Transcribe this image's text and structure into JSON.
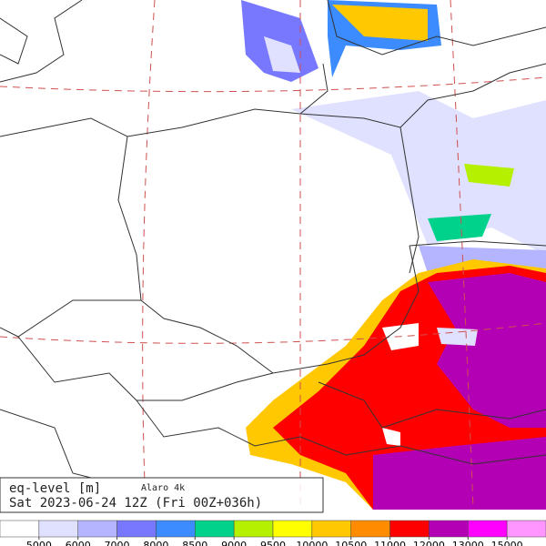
{
  "legend": {
    "title": "eq-level [m]",
    "model": "Alaro 4k",
    "time": "Sat 2023-06-24 12Z (Fri 00Z+036h)",
    "levels": [
      5000,
      6000,
      7000,
      8000,
      8500,
      9000,
      9500,
      10000,
      10500,
      11000,
      12000,
      13000,
      15000
    ],
    "colors": [
      "#ffffff",
      "#e0e0ff",
      "#b4b4ff",
      "#7878ff",
      "#3c8cff",
      "#00d28c",
      "#b4f000",
      "#ffff00",
      "#ffc800",
      "#ff8c00",
      "#ff0000",
      "#b400b4",
      "#ff00ff",
      "#ff96ff"
    ]
  }
}
